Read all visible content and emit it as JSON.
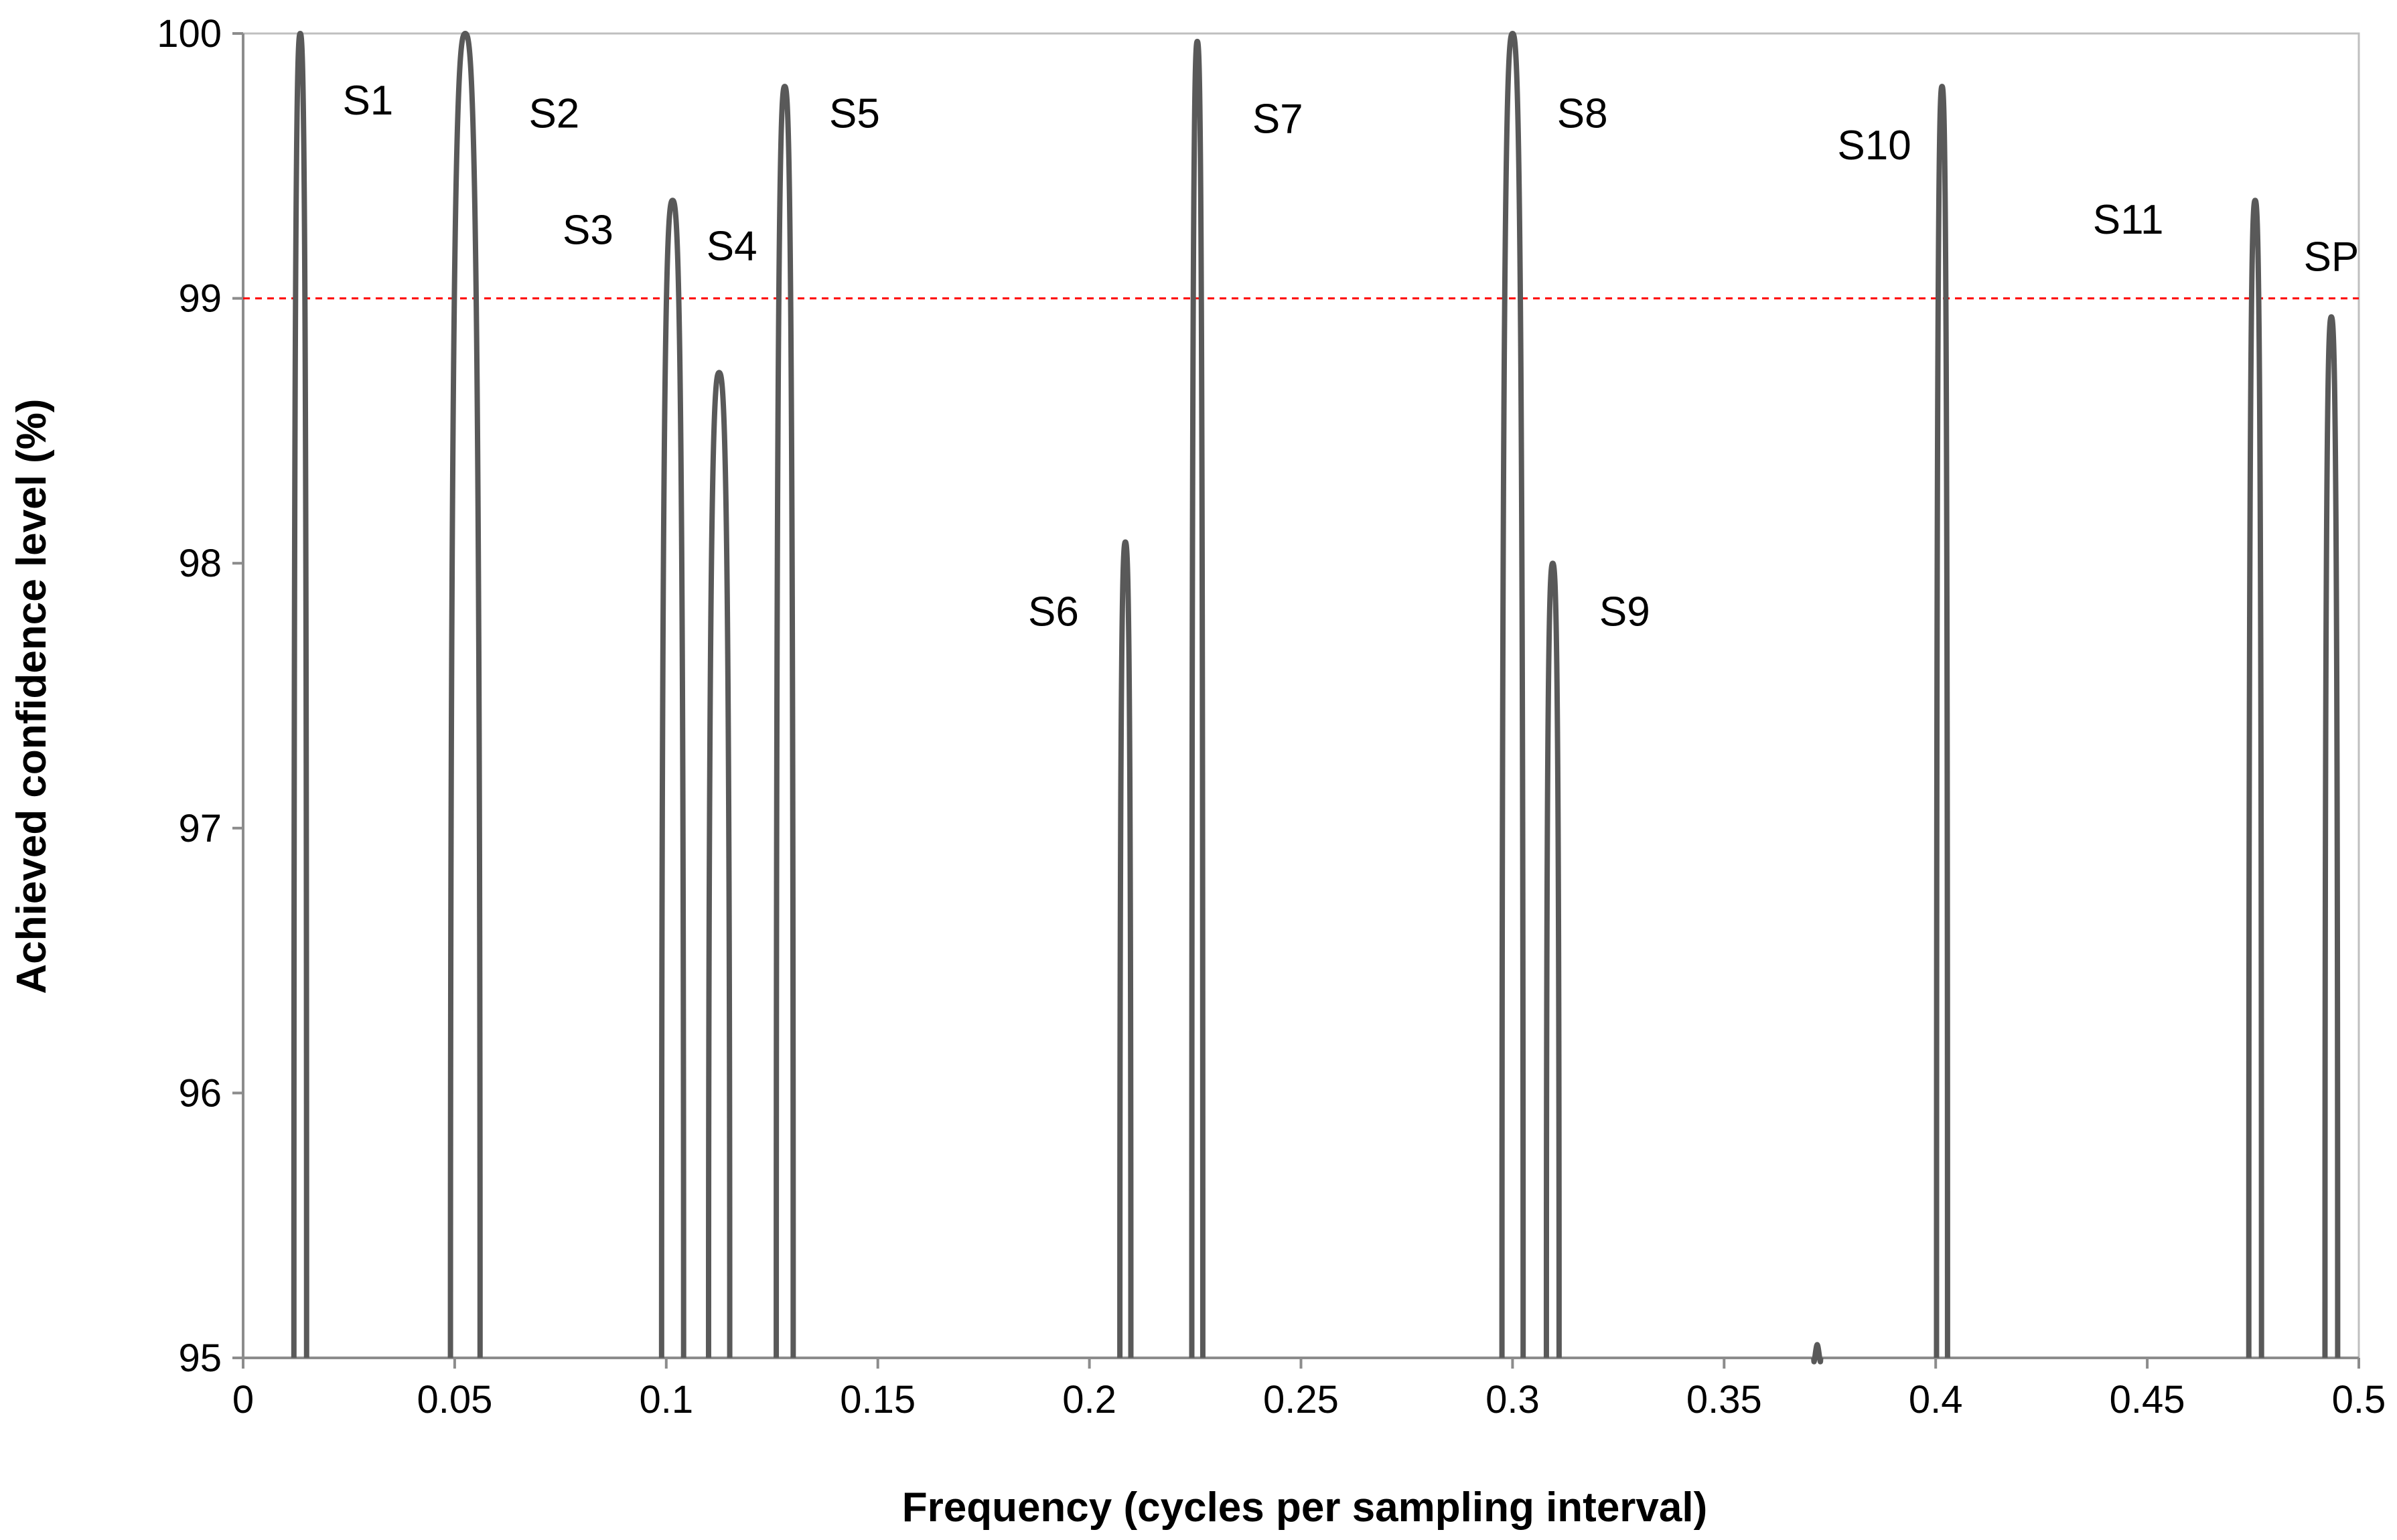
{
  "chart_data": {
    "type": "line",
    "title": "",
    "xlabel": "Frequency (cycles per sampling interval)",
    "ylabel": "Achieved confidence level (%)",
    "xlim": [
      0,
      0.5
    ],
    "ylim": [
      95,
      100
    ],
    "x_ticks": [
      "0",
      "0.05",
      "0.1",
      "0.15",
      "0.2",
      "0.25",
      "0.3",
      "0.35",
      "0.4",
      "0.45",
      "0.5"
    ],
    "y_ticks": [
      "95",
      "96",
      "97",
      "98",
      "99",
      "100"
    ],
    "grid": false,
    "line_color": "#595959",
    "threshold": {
      "value": 99,
      "color": "#ff0000",
      "style": "dashed"
    },
    "peaks": [
      {
        "label": "S1",
        "x": 0.0135,
        "peak": 100.0,
        "halfwidth": 0.0015
      },
      {
        "label": "S2",
        "x": 0.0525,
        "peak": 100.0,
        "halfwidth": 0.0035
      },
      {
        "label": "S3",
        "x": 0.1015,
        "peak": 99.37,
        "halfwidth": 0.0026
      },
      {
        "label": "S4",
        "x": 0.1125,
        "peak": 98.72,
        "halfwidth": 0.0025
      },
      {
        "label": "S5",
        "x": 0.128,
        "peak": 99.8,
        "halfwidth": 0.002
      },
      {
        "label": "S6",
        "x": 0.2085,
        "peak": 98.08,
        "halfwidth": 0.0013
      },
      {
        "label": "S7",
        "x": 0.2255,
        "peak": 99.97,
        "halfwidth": 0.0013
      },
      {
        "label": "S8",
        "x": 0.3,
        "peak": 100.0,
        "halfwidth": 0.0025
      },
      {
        "label": "S9",
        "x": 0.3095,
        "peak": 98.0,
        "halfwidth": 0.0015
      },
      {
        "label": null,
        "x": 0.372,
        "peak": 95.05,
        "halfwidth": 0.0008
      },
      {
        "label": "S10",
        "x": 0.4015,
        "peak": 99.8,
        "halfwidth": 0.0013
      },
      {
        "label": "S11",
        "x": 0.4755,
        "peak": 99.37,
        "halfwidth": 0.0015
      },
      {
        "label": "SP",
        "x": 0.4935,
        "peak": 98.93,
        "halfwidth": 0.0015
      }
    ],
    "labels": [
      {
        "text": "S1",
        "x": 0.0295,
        "y": 99.75
      },
      {
        "text": "S2",
        "x": 0.0735,
        "y": 99.7
      },
      {
        "text": "S3",
        "x": 0.0815,
        "y": 99.26
      },
      {
        "text": "S4",
        "x": 0.1155,
        "y": 99.2
      },
      {
        "text": "S5",
        "x": 0.1445,
        "y": 99.7
      },
      {
        "text": "S6",
        "x": 0.1915,
        "y": 97.82
      },
      {
        "text": "S7",
        "x": 0.2445,
        "y": 99.68
      },
      {
        "text": "S8",
        "x": 0.3165,
        "y": 99.7
      },
      {
        "text": "S9",
        "x": 0.3265,
        "y": 97.82
      },
      {
        "text": "S10",
        "x": 0.3855,
        "y": 99.58
      },
      {
        "text": "S11",
        "x": 0.4455,
        "y": 99.3
      },
      {
        "text": "SP",
        "x": 0.4935,
        "y": 99.16
      }
    ]
  }
}
